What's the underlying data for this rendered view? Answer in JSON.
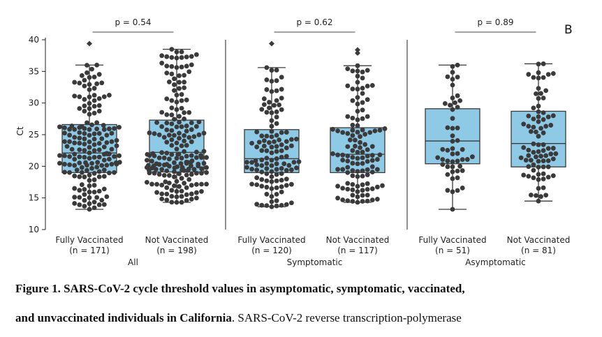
{
  "panel_letter": "B",
  "caption": {
    "bold_part_1": "Figure 1. SARS-CoV-2 cycle threshold values in asymptomatic, symptomatic, vaccinated,",
    "bold_part_2": "and unvaccinated individuals in California",
    "normal_part": ". SARS-CoV-2 reverse transcription-polymerase"
  },
  "chart_data": {
    "type": "box-swarm",
    "ylabel": "Ct",
    "ylim": [
      10,
      40
    ],
    "yticks": [
      10,
      15,
      20,
      25,
      30,
      35,
      40
    ],
    "box_color": "#8ecae6",
    "point_color": "#3a3a3a",
    "groups": [
      {
        "name": "All",
        "p_value": "p = 0.54",
        "categories": [
          {
            "label": "Fully Vaccinated",
            "n": "(n = 171)",
            "n_count": 171,
            "min": 13.2,
            "q1": 19.0,
            "median": 22.1,
            "q3": 26.6,
            "max": 36.0,
            "outliers": [
              39.4
            ]
          },
          {
            "label": "Not Vaccinated",
            "n": "(n = 198)",
            "n_count": 198,
            "min": 14.3,
            "q1": 19.1,
            "median": 22.2,
            "q3": 27.3,
            "max": 38.5,
            "outliers": []
          }
        ]
      },
      {
        "name": "Symptomatic",
        "p_value": "p = 0.62",
        "categories": [
          {
            "label": "Fully Vaccinated",
            "n": "(n = 120)",
            "n_count": 120,
            "min": 13.6,
            "q1": 19.0,
            "median": 21.2,
            "q3": 25.8,
            "max": 35.6,
            "outliers": [
              39.4
            ]
          },
          {
            "label": "Not Vaccinated",
            "n": "(n = 117)",
            "n_count": 117,
            "min": 14.3,
            "q1": 19.0,
            "median": 21.9,
            "q3": 26.1,
            "max": 35.9,
            "outliers": [
              37.9,
              38.4
            ]
          }
        ]
      },
      {
        "name": "Asymptomatic",
        "p_value": "p = 0.89",
        "categories": [
          {
            "label": "Fully Vaccinated",
            "n": "(n = 51)",
            "n_count": 51,
            "min": 13.2,
            "q1": 20.4,
            "median": 24.0,
            "q3": 29.1,
            "max": 36.0,
            "outliers": []
          },
          {
            "label": "Not Vaccinated",
            "n": "(n = 81)",
            "n_count": 81,
            "min": 14.5,
            "q1": 19.9,
            "median": 23.6,
            "q3": 28.7,
            "max": 36.2,
            "outliers": []
          }
        ]
      }
    ]
  }
}
